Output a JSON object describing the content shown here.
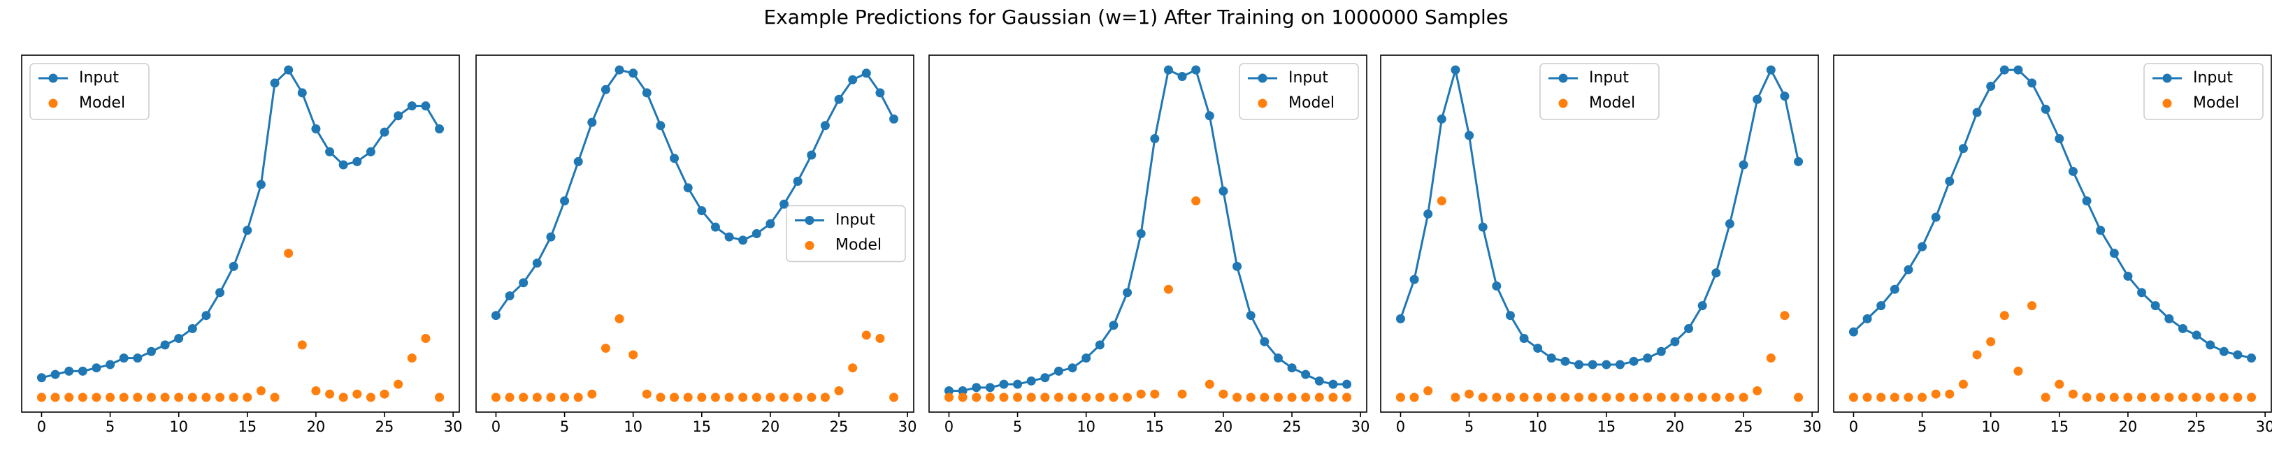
{
  "title": "Example Predictions for Gaussian (w=1) After Training on 1000000 Samples",
  "chart_data": [
    {
      "type": "line",
      "legend": "upper left",
      "x": [
        0,
        1,
        2,
        3,
        4,
        5,
        6,
        7,
        8,
        9,
        10,
        11,
        12,
        13,
        14,
        15,
        16,
        17,
        18,
        19,
        20,
        21,
        22,
        23,
        24,
        25,
        26,
        27,
        28,
        29
      ],
      "xlim": [
        -1.45,
        30.45
      ],
      "xticks": [
        0,
        5,
        10,
        15,
        20,
        25,
        30
      ],
      "ylim": [
        -0.045,
        1.045
      ],
      "series": [
        {
          "name": "Input",
          "color": "#1f77b4",
          "line": true,
          "values": [
            0.06,
            0.07,
            0.08,
            0.08,
            0.09,
            0.1,
            0.12,
            0.12,
            0.14,
            0.16,
            0.18,
            0.21,
            0.25,
            0.32,
            0.4,
            0.51,
            0.65,
            0.96,
            1.0,
            0.93,
            0.82,
            0.75,
            0.71,
            0.72,
            0.75,
            0.81,
            0.86,
            0.89,
            0.89,
            0.82
          ]
        },
        {
          "name": "Model",
          "color": "#ff7f0e",
          "line": false,
          "values": [
            0,
            0,
            0,
            0,
            0,
            0,
            0,
            0,
            0,
            0,
            0,
            0,
            0,
            0,
            0,
            0,
            0.02,
            0,
            0.44,
            0.16,
            0.02,
            0.01,
            0,
            0.01,
            0,
            0.01,
            0.04,
            0.12,
            0.18,
            0
          ]
        }
      ]
    },
    {
      "type": "line",
      "legend": "center right",
      "x": [
        0,
        1,
        2,
        3,
        4,
        5,
        6,
        7,
        8,
        9,
        10,
        11,
        12,
        13,
        14,
        15,
        16,
        17,
        18,
        19,
        20,
        21,
        22,
        23,
        24,
        25,
        26,
        27,
        28,
        29
      ],
      "xlim": [
        -1.45,
        30.45
      ],
      "xticks": [
        0,
        5,
        10,
        15,
        20,
        25,
        30
      ],
      "ylim": [
        -0.045,
        1.045
      ],
      "series": [
        {
          "name": "Input",
          "color": "#1f77b4",
          "line": true,
          "values": [
            0.25,
            0.31,
            0.35,
            0.41,
            0.49,
            0.6,
            0.72,
            0.84,
            0.94,
            1.0,
            0.99,
            0.93,
            0.83,
            0.73,
            0.64,
            0.57,
            0.52,
            0.49,
            0.48,
            0.5,
            0.53,
            0.59,
            0.66,
            0.74,
            0.83,
            0.91,
            0.97,
            0.99,
            0.93,
            0.85
          ]
        },
        {
          "name": "Model",
          "color": "#ff7f0e",
          "line": false,
          "values": [
            0,
            0,
            0,
            0,
            0,
            0,
            0,
            0.01,
            0.15,
            0.24,
            0.13,
            0.01,
            0,
            0,
            0,
            0,
            0,
            0,
            0,
            0,
            0,
            0,
            0,
            0,
            0,
            0.02,
            0.09,
            0.19,
            0.18,
            0
          ]
        }
      ]
    },
    {
      "type": "line",
      "legend": "upper right",
      "x": [
        0,
        1,
        2,
        3,
        4,
        5,
        6,
        7,
        8,
        9,
        10,
        11,
        12,
        13,
        14,
        15,
        16,
        17,
        18,
        19,
        20,
        21,
        22,
        23,
        24,
        25,
        26,
        27,
        28,
        29
      ],
      "xlim": [
        -1.45,
        30.45
      ],
      "xticks": [
        0,
        5,
        10,
        15,
        20,
        25,
        30
      ],
      "ylim": [
        -0.045,
        1.045
      ],
      "series": [
        {
          "name": "Input",
          "color": "#1f77b4",
          "line": true,
          "values": [
            0.02,
            0.02,
            0.03,
            0.03,
            0.04,
            0.04,
            0.05,
            0.06,
            0.08,
            0.09,
            0.12,
            0.16,
            0.22,
            0.32,
            0.5,
            0.79,
            1.0,
            0.98,
            1.0,
            0.86,
            0.63,
            0.4,
            0.25,
            0.17,
            0.12,
            0.09,
            0.07,
            0.05,
            0.04,
            0.04
          ]
        },
        {
          "name": "Model",
          "color": "#ff7f0e",
          "line": false,
          "values": [
            0,
            0,
            0,
            0,
            0,
            0,
            0,
            0,
            0,
            0,
            0,
            0,
            0,
            0,
            0.01,
            0.01,
            0.33,
            0.01,
            0.6,
            0.04,
            0.01,
            0,
            0,
            0,
            0,
            0,
            0,
            0,
            0,
            0
          ]
        }
      ]
    },
    {
      "type": "line",
      "legend": "upper center",
      "x": [
        0,
        1,
        2,
        3,
        4,
        5,
        6,
        7,
        8,
        9,
        10,
        11,
        12,
        13,
        14,
        15,
        16,
        17,
        18,
        19,
        20,
        21,
        22,
        23,
        24,
        25,
        26,
        27,
        28,
        29
      ],
      "xlim": [
        -1.45,
        30.45
      ],
      "xticks": [
        0,
        5,
        10,
        15,
        20,
        25,
        30
      ],
      "ylim": [
        -0.045,
        1.045
      ],
      "series": [
        {
          "name": "Input",
          "color": "#1f77b4",
          "line": true,
          "values": [
            0.24,
            0.36,
            0.56,
            0.85,
            1.0,
            0.8,
            0.52,
            0.34,
            0.25,
            0.18,
            0.15,
            0.12,
            0.11,
            0.1,
            0.1,
            0.1,
            0.1,
            0.11,
            0.12,
            0.14,
            0.17,
            0.21,
            0.28,
            0.38,
            0.53,
            0.71,
            0.91,
            1.0,
            0.92,
            0.72
          ]
        },
        {
          "name": "Model",
          "color": "#ff7f0e",
          "line": false,
          "values": [
            0,
            0,
            0.02,
            0.6,
            0,
            0.01,
            0,
            0,
            0,
            0,
            0,
            0,
            0,
            0,
            0,
            0,
            0,
            0,
            0,
            0,
            0,
            0,
            0,
            0,
            0,
            0,
            0.02,
            0.12,
            0.25,
            0
          ]
        }
      ]
    },
    {
      "type": "line",
      "legend": "upper right",
      "x": [
        0,
        1,
        2,
        3,
        4,
        5,
        6,
        7,
        8,
        9,
        10,
        11,
        12,
        13,
        14,
        15,
        16,
        17,
        18,
        19,
        20,
        21,
        22,
        23,
        24,
        25,
        26,
        27,
        28,
        29
      ],
      "xlim": [
        -1.45,
        30.45
      ],
      "xticks": [
        0,
        5,
        10,
        15,
        20,
        25,
        30
      ],
      "ylim": [
        -0.045,
        1.045
      ],
      "series": [
        {
          "name": "Input",
          "color": "#1f77b4",
          "line": true,
          "values": [
            0.2,
            0.24,
            0.28,
            0.33,
            0.39,
            0.46,
            0.55,
            0.66,
            0.76,
            0.87,
            0.95,
            1.0,
            1.0,
            0.96,
            0.88,
            0.79,
            0.69,
            0.6,
            0.51,
            0.44,
            0.37,
            0.32,
            0.28,
            0.24,
            0.21,
            0.19,
            0.16,
            0.14,
            0.13,
            0.12
          ]
        },
        {
          "name": "Model",
          "color": "#ff7f0e",
          "line": false,
          "values": [
            0,
            0,
            0,
            0,
            0,
            0,
            0.01,
            0.01,
            0.04,
            0.13,
            0.17,
            0.25,
            0.08,
            0.28,
            0,
            0.04,
            0.01,
            0,
            0,
            0,
            0,
            0,
            0,
            0,
            0,
            0,
            0,
            0,
            0,
            0
          ]
        }
      ]
    }
  ]
}
